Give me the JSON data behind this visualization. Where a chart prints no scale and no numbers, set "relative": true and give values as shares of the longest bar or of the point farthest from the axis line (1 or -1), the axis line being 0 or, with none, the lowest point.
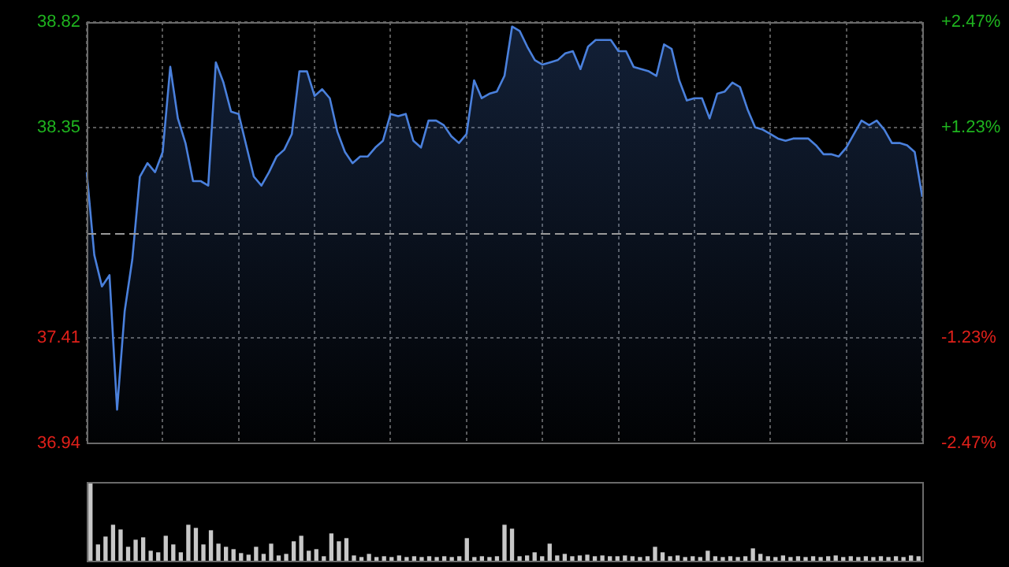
{
  "chart_data": [
    {
      "type": "area",
      "categories": [
        null,
        null,
        null,
        null,
        null,
        null,
        null,
        null,
        null,
        null,
        null,
        null,
        null,
        null,
        null,
        null,
        null,
        null,
        null,
        null,
        null,
        null,
        null,
        null,
        null,
        null,
        null,
        null,
        null,
        null,
        null,
        null,
        null,
        null,
        null,
        null,
        null,
        null,
        null,
        null,
        null,
        null,
        null,
        null,
        null,
        null,
        null,
        null,
        null,
        null,
        null,
        null,
        null,
        null,
        null,
        null,
        null,
        null,
        null,
        null,
        null,
        null,
        null,
        null,
        null,
        null,
        null,
        null,
        null,
        null,
        null,
        null,
        null,
        null,
        null,
        null,
        null,
        null,
        null,
        null,
        null,
        null,
        null,
        null,
        null,
        null,
        null,
        null,
        null,
        null,
        null,
        null,
        null,
        null,
        null,
        null,
        null,
        null,
        null,
        null,
        null,
        null,
        null,
        null,
        null,
        null,
        null,
        null,
        null,
        null,
        null
      ],
      "series": [
        {
          "color": "#4a80dc",
          "values": [
            38.15,
            37.78,
            37.64,
            37.69,
            37.09,
            37.53,
            37.76,
            38.13,
            38.19,
            38.15,
            38.24,
            38.62,
            38.39,
            38.28,
            38.11,
            38.11,
            38.09,
            38.64,
            38.55,
            38.42,
            38.41,
            38.27,
            38.13,
            38.09,
            38.15,
            38.22,
            38.25,
            38.32,
            38.6,
            38.6,
            38.49,
            38.52,
            38.48,
            38.33,
            38.24,
            38.19,
            38.22,
            38.22,
            38.26,
            38.29,
            38.41,
            38.4,
            38.41,
            38.29,
            38.26,
            38.38,
            38.38,
            38.36,
            38.31,
            38.28,
            38.32,
            38.56,
            38.48,
            38.5,
            38.51,
            38.58,
            38.8,
            38.78,
            38.71,
            38.65,
            38.63,
            38.64,
            38.65,
            38.68,
            38.69,
            38.61,
            38.71,
            38.74,
            38.74,
            38.74,
            38.69,
            38.69,
            38.62,
            38.61,
            38.6,
            38.58,
            38.72,
            38.7,
            38.56,
            38.47,
            38.48,
            38.48,
            38.39,
            38.5,
            38.51,
            38.55,
            38.53,
            38.43,
            38.35,
            38.34,
            38.32,
            38.3,
            38.29,
            38.3,
            38.3,
            38.3,
            38.27,
            38.23,
            38.23,
            38.22,
            38.26,
            38.32,
            38.38,
            38.36,
            38.38,
            38.34,
            38.28,
            38.28,
            38.27,
            38.24,
            38.04
          ]
        }
      ],
      "ylim": [
        36.94,
        38.82
      ],
      "yticks": [
        38.82,
        38.35,
        37.41,
        36.94
      ],
      "y2lim": [
        -2.47,
        2.47
      ],
      "y2ticks": [
        {
          "value": 2.47,
          "label": "+2.47%"
        },
        {
          "value": 1.23,
          "label": "+1.23%"
        },
        {
          "value": -1.23,
          "label": "-1.23%"
        },
        {
          "value": -2.47,
          "label": "-2.47%"
        }
      ],
      "ref_lines": [
        {
          "axis": "y",
          "value": 37.88,
          "line_style": "dashed"
        }
      ],
      "grid": true,
      "legend": false,
      "tick_labels": "y",
      "marker": "none"
    },
    {
      "type": "bar",
      "relative": true,
      "categories": [
        null,
        null,
        null,
        null,
        null,
        null,
        null,
        null,
        null,
        null,
        null,
        null,
        null,
        null,
        null,
        null,
        null,
        null,
        null,
        null,
        null,
        null,
        null,
        null,
        null,
        null,
        null,
        null,
        null,
        null,
        null,
        null,
        null,
        null,
        null,
        null,
        null,
        null,
        null,
        null,
        null,
        null,
        null,
        null,
        null,
        null,
        null,
        null,
        null,
        null,
        null,
        null,
        null,
        null,
        null,
        null,
        null,
        null,
        null,
        null,
        null,
        null,
        null,
        null,
        null,
        null,
        null,
        null,
        null,
        null,
        null,
        null,
        null,
        null,
        null,
        null,
        null,
        null,
        null,
        null,
        null,
        null,
        null,
        null,
        null,
        null,
        null,
        null,
        null,
        null,
        null,
        null,
        null,
        null,
        null,
        null,
        null,
        null,
        null,
        null,
        null,
        null,
        null,
        null,
        null,
        null,
        null,
        null,
        null,
        null,
        null
      ],
      "series": [
        {
          "color": "#c8c8c8",
          "values": [
            1.0,
            0.2,
            0.3,
            0.45,
            0.39,
            0.17,
            0.26,
            0.29,
            0.12,
            0.1,
            0.31,
            0.2,
            0.1,
            0.45,
            0.41,
            0.2,
            0.38,
            0.21,
            0.17,
            0.14,
            0.09,
            0.07,
            0.17,
            0.08,
            0.21,
            0.06,
            0.08,
            0.24,
            0.31,
            0.12,
            0.14,
            0.05,
            0.34,
            0.24,
            0.28,
            0.06,
            0.04,
            0.08,
            0.04,
            0.05,
            0.04,
            0.06,
            0.04,
            0.05,
            0.04,
            0.05,
            0.04,
            0.05,
            0.04,
            0.05,
            0.28,
            0.04,
            0.05,
            0.04,
            0.05,
            0.45,
            0.4,
            0.05,
            0.06,
            0.1,
            0.05,
            0.21,
            0.06,
            0.08,
            0.05,
            0.06,
            0.07,
            0.05,
            0.06,
            0.05,
            0.05,
            0.06,
            0.05,
            0.04,
            0.05,
            0.17,
            0.1,
            0.05,
            0.06,
            0.04,
            0.05,
            0.04,
            0.12,
            0.05,
            0.04,
            0.05,
            0.04,
            0.05,
            0.15,
            0.08,
            0.05,
            0.04,
            0.06,
            0.04,
            0.05,
            0.04,
            0.05,
            0.04,
            0.05,
            0.06,
            0.04,
            0.05,
            0.04,
            0.05,
            0.04,
            0.05,
            0.04,
            0.05,
            0.04,
            0.06,
            0.05
          ]
        }
      ],
      "grid": false,
      "legend": false,
      "tick_labels": false
    }
  ]
}
